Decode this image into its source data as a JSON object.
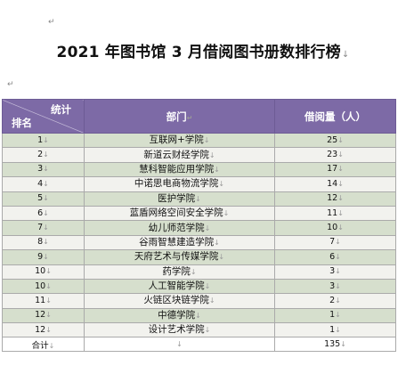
{
  "title": "2021 年图书馆 3 月借阅图书册数排行榜",
  "header": {
    "corner_top": "统计",
    "corner_bottom": "排名",
    "dept": "部门",
    "count": "借阅量（人）"
  },
  "rows": [
    {
      "rank": "1",
      "dept": "互联网+学院",
      "count": "25"
    },
    {
      "rank": "2",
      "dept": "新道云财经学院",
      "count": "23"
    },
    {
      "rank": "3",
      "dept": "慧科智能应用学院",
      "count": "17"
    },
    {
      "rank": "4",
      "dept": "中诺思电商物流学院",
      "count": "14"
    },
    {
      "rank": "5",
      "dept": "医护学院",
      "count": "12"
    },
    {
      "rank": "6",
      "dept": "蓝盾网络空间安全学院",
      "count": "11"
    },
    {
      "rank": "7",
      "dept": "幼儿师范学院",
      "count": "10"
    },
    {
      "rank": "8",
      "dept": "谷雨智慧建造学院",
      "count": "7"
    },
    {
      "rank": "9",
      "dept": "天府艺术与传媒学院",
      "count": "6"
    },
    {
      "rank": "10",
      "dept": "药学院",
      "count": "3"
    },
    {
      "rank": "10",
      "dept": "人工智能学院",
      "count": "3"
    },
    {
      "rank": "11",
      "dept": "火链区块链学院",
      "count": "2"
    },
    {
      "rank": "12",
      "dept": "中德学院",
      "count": "1"
    },
    {
      "rank": "12",
      "dept": "设计艺术学院",
      "count": "1"
    }
  ],
  "total": {
    "label": "合计",
    "count": "135"
  }
}
